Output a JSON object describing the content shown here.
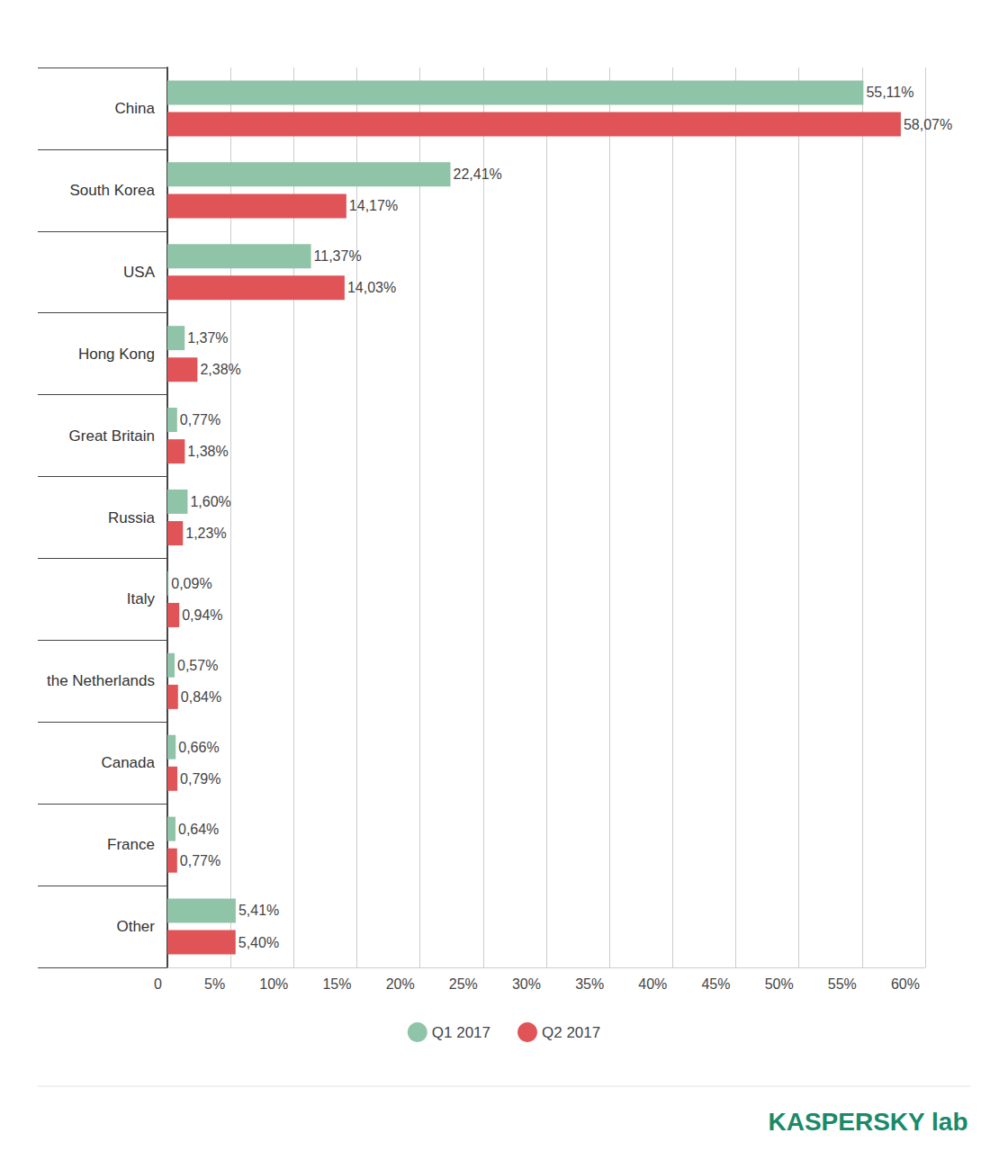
{
  "chart_data": {
    "type": "bar",
    "orientation": "horizontal",
    "categories": [
      "China",
      "South Korea",
      "USA",
      "Hong Kong",
      "Great Britain",
      "Russia",
      "Italy",
      "the Netherlands",
      "Canada",
      "France",
      "Other"
    ],
    "series": [
      {
        "name": "Q1 2017",
        "color": "#8fc4a8",
        "values": [
          55.11,
          22.41,
          11.37,
          1.37,
          0.77,
          1.6,
          0.09,
          0.57,
          0.66,
          0.64,
          5.41
        ],
        "value_labels": [
          "55,11%",
          "22,41%",
          "11,37%",
          "1,37%",
          "0,77%",
          "1,60%",
          "0,09%",
          "0,57%",
          "0,66%",
          "0,64%",
          "5,41%"
        ]
      },
      {
        "name": "Q2 2017",
        "color": "#e05458",
        "values": [
          58.07,
          14.17,
          14.03,
          2.38,
          1.38,
          1.23,
          0.94,
          0.84,
          0.79,
          0.77,
          5.4
        ],
        "value_labels": [
          "58,07%",
          "14,17%",
          "14,03%",
          "2,38%",
          "1,38%",
          "1,23%",
          "0,94%",
          "0,84%",
          "0,79%",
          "0,77%",
          "5,40%"
        ]
      }
    ],
    "xlim": [
      0,
      60
    ],
    "xticks": [
      0,
      {
        "value": 5,
        "label": "5%"
      },
      {
        "value": 10,
        "label": "10%"
      },
      {
        "value": 15,
        "label": "15%"
      },
      {
        "value": 20,
        "label": "20%"
      },
      {
        "value": 25,
        "label": "25%"
      },
      {
        "value": 30,
        "label": "30%"
      },
      {
        "value": 35,
        "label": "35%"
      },
      {
        "value": 40,
        "label": "40%"
      },
      {
        "value": 45,
        "label": "45%"
      },
      {
        "value": 50,
        "label": "50%"
      },
      {
        "value": 55,
        "label": "55%"
      },
      {
        "value": 60,
        "label": "60%"
      }
    ],
    "grid": true,
    "legend": "bottom",
    "data_labels": true,
    "annotations": [
      "KASPERSKY lab"
    ]
  }
}
